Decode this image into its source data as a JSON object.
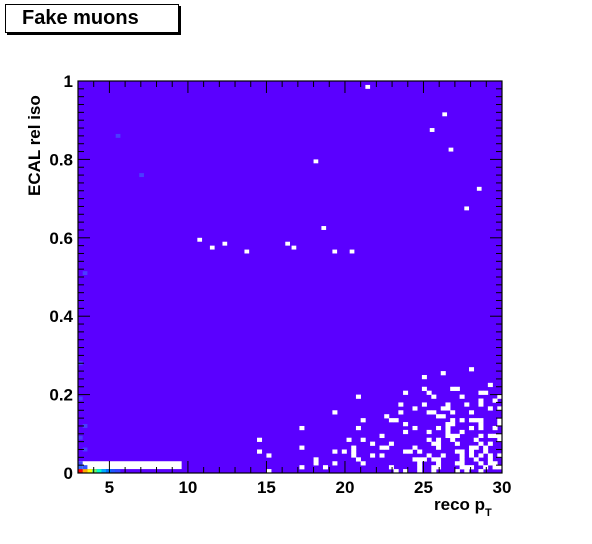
{
  "chart_data": {
    "type": "heatmap",
    "title": "Fake muons",
    "xlabel": "reco p",
    "xlabel_sub": "T",
    "ylabel": "ECAL rel iso",
    "xlim": [
      3,
      30
    ],
    "ylim": [
      0,
      1
    ],
    "x_ticks": [
      5,
      10,
      15,
      20,
      25,
      30
    ],
    "y_ticks": [
      0,
      0.2,
      0.4,
      0.6,
      0.8,
      1
    ],
    "y_tick_labels": [
      "0",
      "0.2",
      "0.4",
      "0.6",
      "0.8",
      "1"
    ],
    "background_color": "#5a00ff",
    "empty_color": "#ffffff",
    "empty_bins": [
      [
        10.6,
        0.59
      ],
      [
        11.4,
        0.57
      ],
      [
        12.2,
        0.58
      ],
      [
        13.6,
        0.56
      ],
      [
        16.2,
        0.58
      ],
      [
        16.6,
        0.57
      ],
      [
        18.0,
        0.79
      ],
      [
        18.5,
        0.62
      ],
      [
        19.2,
        0.56
      ],
      [
        20.3,
        0.56
      ],
      [
        21.3,
        0.98
      ],
      [
        25.4,
        0.87
      ],
      [
        26.2,
        0.91
      ],
      [
        26.6,
        0.82
      ],
      [
        27.6,
        0.67
      ],
      [
        28.4,
        0.72
      ]
    ],
    "hot_bins": [
      {
        "x": 3.15,
        "y": 0.005,
        "color": "#ff0000"
      },
      {
        "x": 3.45,
        "y": 0.005,
        "color": "#ffaa00"
      },
      {
        "x": 3.75,
        "y": 0.005,
        "color": "#ffff00"
      },
      {
        "x": 4.05,
        "y": 0.005,
        "color": "#66ff66"
      },
      {
        "x": 4.35,
        "y": 0.005,
        "color": "#00ffcc"
      },
      {
        "x": 4.65,
        "y": 0.005,
        "color": "#00aaff"
      },
      {
        "x": 4.95,
        "y": 0.005,
        "color": "#0077ff"
      },
      {
        "x": 5.25,
        "y": 0.005,
        "color": "#2255ff"
      },
      {
        "x": 5.55,
        "y": 0.005,
        "color": "#3344ff"
      },
      {
        "x": 3.15,
        "y": 0.015,
        "color": "#3366ff"
      },
      {
        "x": 3.45,
        "y": 0.015,
        "color": "#3355ff"
      },
      {
        "x": 3.15,
        "y": 0.025,
        "color": "#4444ff"
      },
      {
        "x": 3.45,
        "y": 0.06,
        "color": "#4a3cff"
      },
      {
        "x": 3.15,
        "y": 0.09,
        "color": "#4a3cff"
      },
      {
        "x": 3.45,
        "y": 0.12,
        "color": "#4a3cff"
      },
      {
        "x": 3.15,
        "y": 0.19,
        "color": "#4a3cff"
      },
      {
        "x": 3.15,
        "y": 0.28,
        "color": "#4a3cff"
      },
      {
        "x": 3.45,
        "y": 0.51,
        "color": "#4a3cff"
      },
      {
        "x": 5.55,
        "y": 0.86,
        "color": "#4a3cff"
      },
      {
        "x": 7.05,
        "y": 0.76,
        "color": "#4a3cff"
      }
    ],
    "white_patch": {
      "x0": 3.0,
      "x1": 9.6,
      "y0": 0.01,
      "y1": 0.03
    }
  }
}
